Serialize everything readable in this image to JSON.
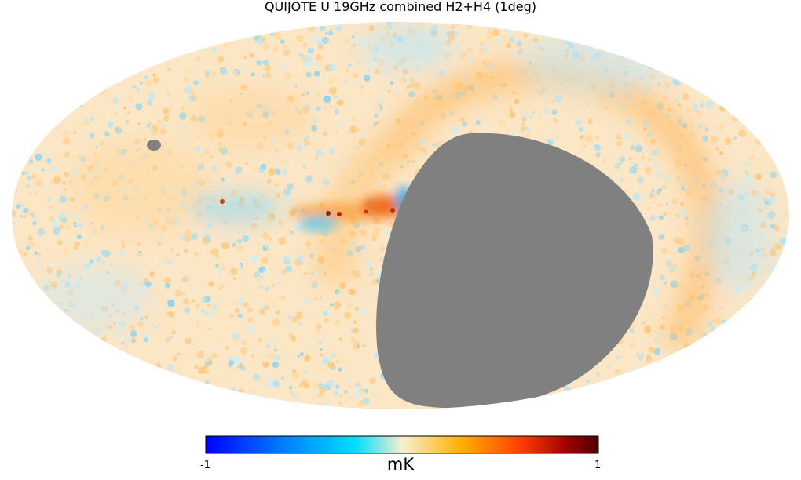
{
  "chart_data": {
    "type": "heatmap",
    "projection": "mollweide",
    "title": "QUIJOTE U 19GHz combined H2+H4 (1deg)",
    "colorbar": {
      "label": "mK",
      "min": -1,
      "max": 1,
      "tick_labels": [
        "-1",
        "1"
      ],
      "colormap_stops": [
        "#0000ff",
        "#0080ff",
        "#00ddff",
        "#f5f0d0",
        "#ffb000",
        "#ff4000",
        "#a00000",
        "#500000"
      ]
    },
    "mask_color": "#808080",
    "features": [
      {
        "name": "galactic-plane-emission",
        "sign": "positive"
      },
      {
        "name": "north-polar-spur",
        "sign": "positive"
      },
      {
        "name": "masked-region",
        "value": "none"
      }
    ]
  }
}
